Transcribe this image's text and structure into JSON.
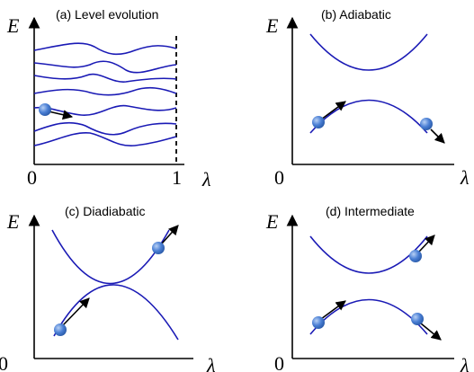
{
  "panels": {
    "a": {
      "title": "(a) Level evolution",
      "y_label": "E",
      "x_label": "λ",
      "tick_start": "0",
      "tick_end": "1"
    },
    "b": {
      "title": "(b) Adiabatic",
      "y_label": "E",
      "x_label": "λ",
      "tick_start": "0"
    },
    "c": {
      "title": "(c) Diadiabatic",
      "y_label": "E",
      "x_label": "λ",
      "tick_start": "0"
    },
    "d": {
      "title": "(d) Intermediate",
      "y_label": "E",
      "x_label": "λ",
      "tick_start": "0"
    }
  },
  "colors": {
    "curve": "#1a1ab5",
    "ball": "#4a7fd4",
    "axis": "#000000"
  }
}
